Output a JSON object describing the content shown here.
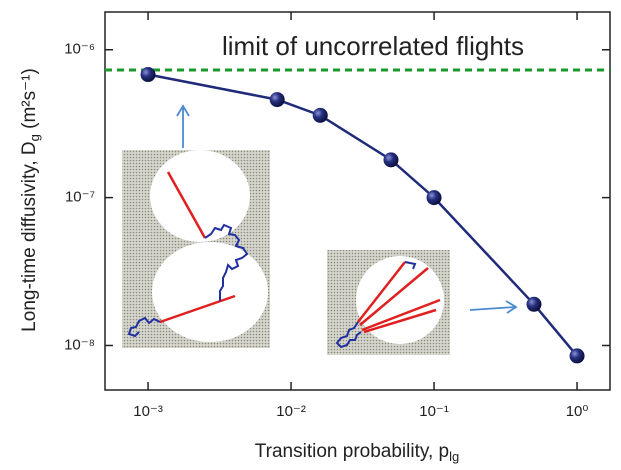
{
  "chart_data": {
    "type": "line",
    "annotation": "limit of uncorrelated flights",
    "x_label": {
      "text": "Transition probability, p",
      "sub": "lg"
    },
    "y_label": {
      "text": "Long-time diffusivity, D",
      "sub": "g",
      "units": " (m²s⁻¹)"
    },
    "x_scale": "log",
    "y_scale": "log",
    "x": [
      0.001,
      0.008,
      0.016,
      0.05,
      0.1,
      0.5,
      1
    ],
    "values": [
      6.8e-07,
      4.6e-07,
      3.6e-07,
      1.8e-07,
      1e-07,
      1.9e-08,
      8.5e-09
    ],
    "color": "#1f2a7a",
    "reference_line": {
      "value": 7.3e-07,
      "color": "#1a9a2a"
    },
    "xlim": [
      0.0005,
      1.7
    ],
    "ylim": [
      5e-09,
      1.8e-06
    ],
    "xticks": [
      {
        "value": 0.001,
        "label": "10⁻³"
      },
      {
        "value": 0.01,
        "label": "10⁻²"
      },
      {
        "value": 0.1,
        "label": "10⁻¹"
      },
      {
        "value": 1,
        "label": "10⁰"
      }
    ],
    "yticks": [
      {
        "value": 1e-08,
        "label": "10⁻⁸"
      },
      {
        "value": 1e-07,
        "label": "10⁻⁷"
      },
      {
        "value": 1e-06,
        "label": "10⁻⁶"
      }
    ]
  }
}
